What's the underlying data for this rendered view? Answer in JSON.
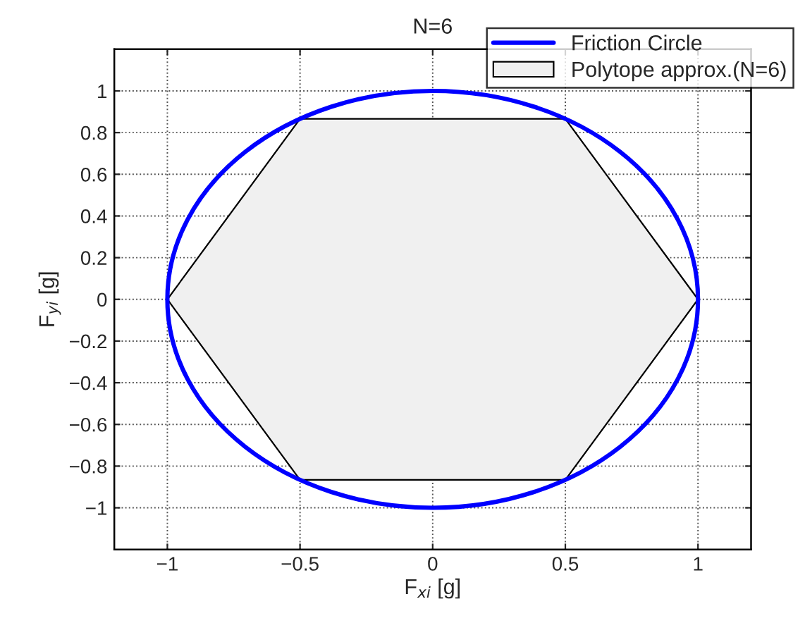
{
  "chart_data": {
    "type": "area",
    "title": "N=6",
    "xlabel": "F$_{xi}$ [g]",
    "ylabel": "F$_{yi}$ [g]",
    "xlim": [
      -1.2,
      1.2
    ],
    "ylim": [
      -1.2,
      1.2
    ],
    "xticks": [
      {
        "value": -1,
        "label": "−1"
      },
      {
        "value": -0.5,
        "label": "−0.5"
      },
      0,
      0.5,
      1
    ],
    "yticks": [
      {
        "value": -1,
        "label": "−1"
      },
      {
        "value": -0.8,
        "label": "−0.8"
      },
      {
        "value": -0.6,
        "label": "−0.6"
      },
      {
        "value": -0.4,
        "label": "−0.4"
      },
      {
        "value": -0.2,
        "label": "−0.2"
      },
      0,
      0.2,
      0.4,
      0.6,
      0.8,
      1
    ],
    "grid": true,
    "legend": "top right",
    "annotations": [
      "Friction Circle"
    ],
    "series": [
      {
        "name": "Polytope approx.(N=6)",
        "color": "#f0f0f0",
        "x": [
          1,
          0.5,
          -0.5,
          -1,
          -0.5,
          0.5
        ],
        "values": [
          0,
          0.866,
          0.866,
          0,
          -0.866,
          -0.866
        ]
      }
    ]
  }
}
